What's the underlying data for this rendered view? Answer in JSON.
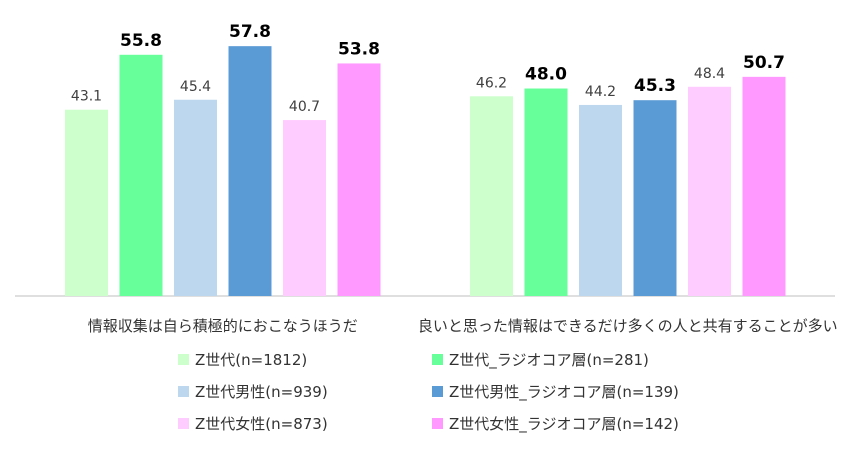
{
  "chart_data": {
    "type": "bar",
    "categories": [
      "情報収集は自ら積極的におこなうほうだ",
      "良いと思った情報はできるだけ多くの人と共有することが多い"
    ],
    "series": [
      {
        "name": "Z世代(n=1812)",
        "values": [
          43.1,
          46.2
        ],
        "color": "#ccffcc",
        "bold": false
      },
      {
        "name": "Z世代_ラジオコア層(n=281)",
        "values": [
          55.8,
          48.0
        ],
        "color": "#66ff99",
        "bold": true
      },
      {
        "name": "Z世代男性(n=939)",
        "values": [
          45.4,
          44.2
        ],
        "color": "#bdd7ee",
        "bold": false
      },
      {
        "name": "Z世代男性_ラジオコア層(n=139)",
        "values": [
          57.8,
          45.3
        ],
        "color": "#5b9bd5",
        "bold": true
      },
      {
        "name": "Z世代女性(n=873)",
        "values": [
          40.7,
          48.4
        ],
        "color": "#ffccff",
        "bold": false
      },
      {
        "name": "Z世代女性_ラジオコア層(n=142)",
        "values": [
          53.8,
          50.7
        ],
        "color": "#ff99ff",
        "bold": true
      }
    ],
    "ylim": [
      0,
      62
    ],
    "grid": false,
    "legend_position": "bottom",
    "value_labels": [
      "43.1",
      "55.8",
      "45.4",
      "57.8",
      "40.7",
      "53.8",
      "46.2",
      "48.0",
      "44.2",
      "45.3",
      "48.4",
      "50.7"
    ]
  }
}
